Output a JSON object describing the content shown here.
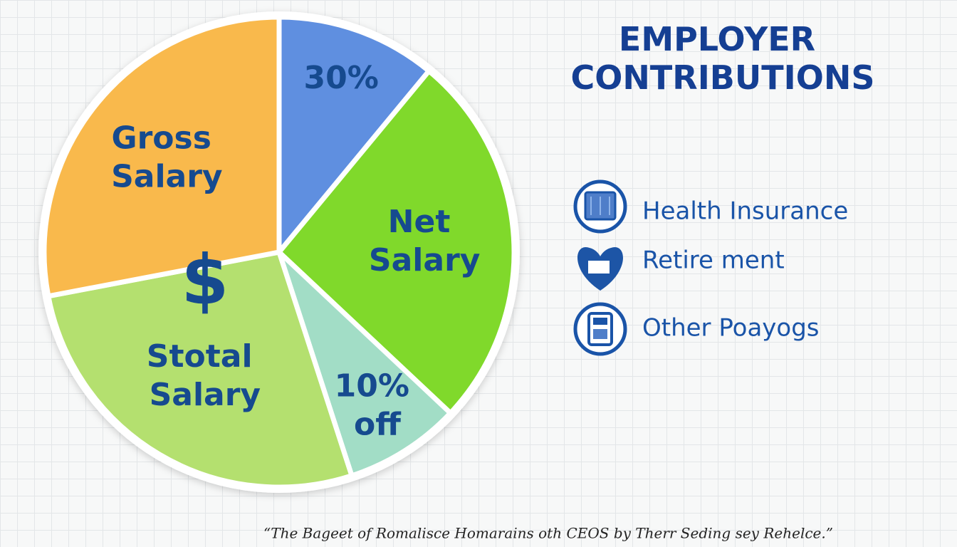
{
  "chart_data": {
    "type": "pie",
    "categories": [
      "30%",
      "Net Salary",
      "10% off",
      "Stotal Salary",
      "Gross Salary"
    ],
    "values": [
      11,
      26,
      8,
      27,
      28
    ],
    "colors": [
      "#5f8fe0",
      "#80d92b",
      "#a2ddc6",
      "#b4e06f",
      "#f9b94c"
    ],
    "annotations": [
      "$"
    ],
    "legend_title": "EMPLOYER CONTRIBUTIONS",
    "legend_items": [
      "Health Insurance",
      "Retire ment",
      "Other Poayogs"
    ],
    "caption": "“The Bageet of Romalisce Homarains oth CEOS by Therr Seding sey Rehelce.”"
  }
}
